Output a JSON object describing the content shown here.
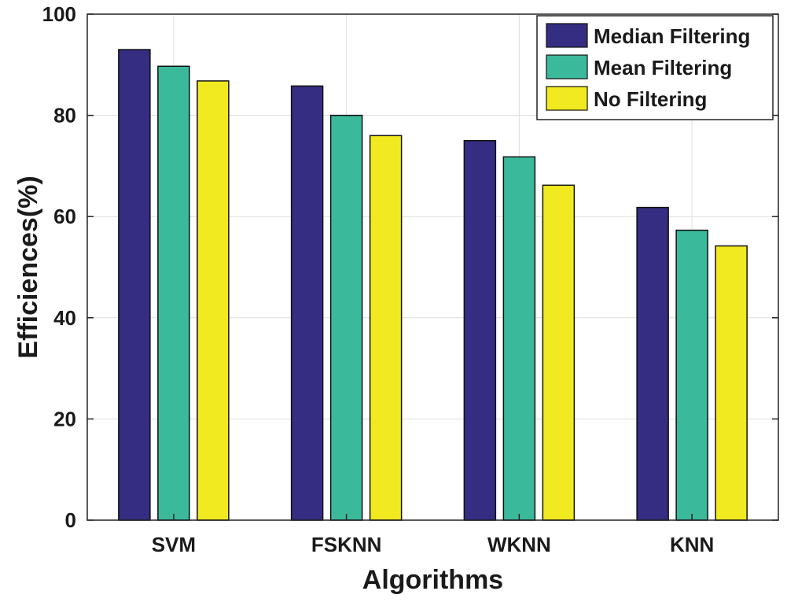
{
  "chart_data": {
    "type": "bar",
    "title": "",
    "xlabel": "Algorithms",
    "ylabel": "Efficiences(%)",
    "categories": [
      "SVM",
      "FSKNN",
      "WKNN",
      "KNN"
    ],
    "ylim": [
      0,
      100
    ],
    "yticks": [
      0,
      20,
      40,
      60,
      80,
      100
    ],
    "grid": true,
    "legend_position": "top-right",
    "series": [
      {
        "name": "Median Filtering",
        "color": "#342d82",
        "values": [
          93,
          85.8,
          75,
          61.8
        ]
      },
      {
        "name": "Mean Filtering",
        "color": "#3bb99b",
        "values": [
          89.7,
          80,
          71.8,
          57.3
        ]
      },
      {
        "name": "No Filtering",
        "color": "#f1ea20",
        "values": [
          86.8,
          76,
          66.2,
          54.2
        ]
      }
    ]
  }
}
